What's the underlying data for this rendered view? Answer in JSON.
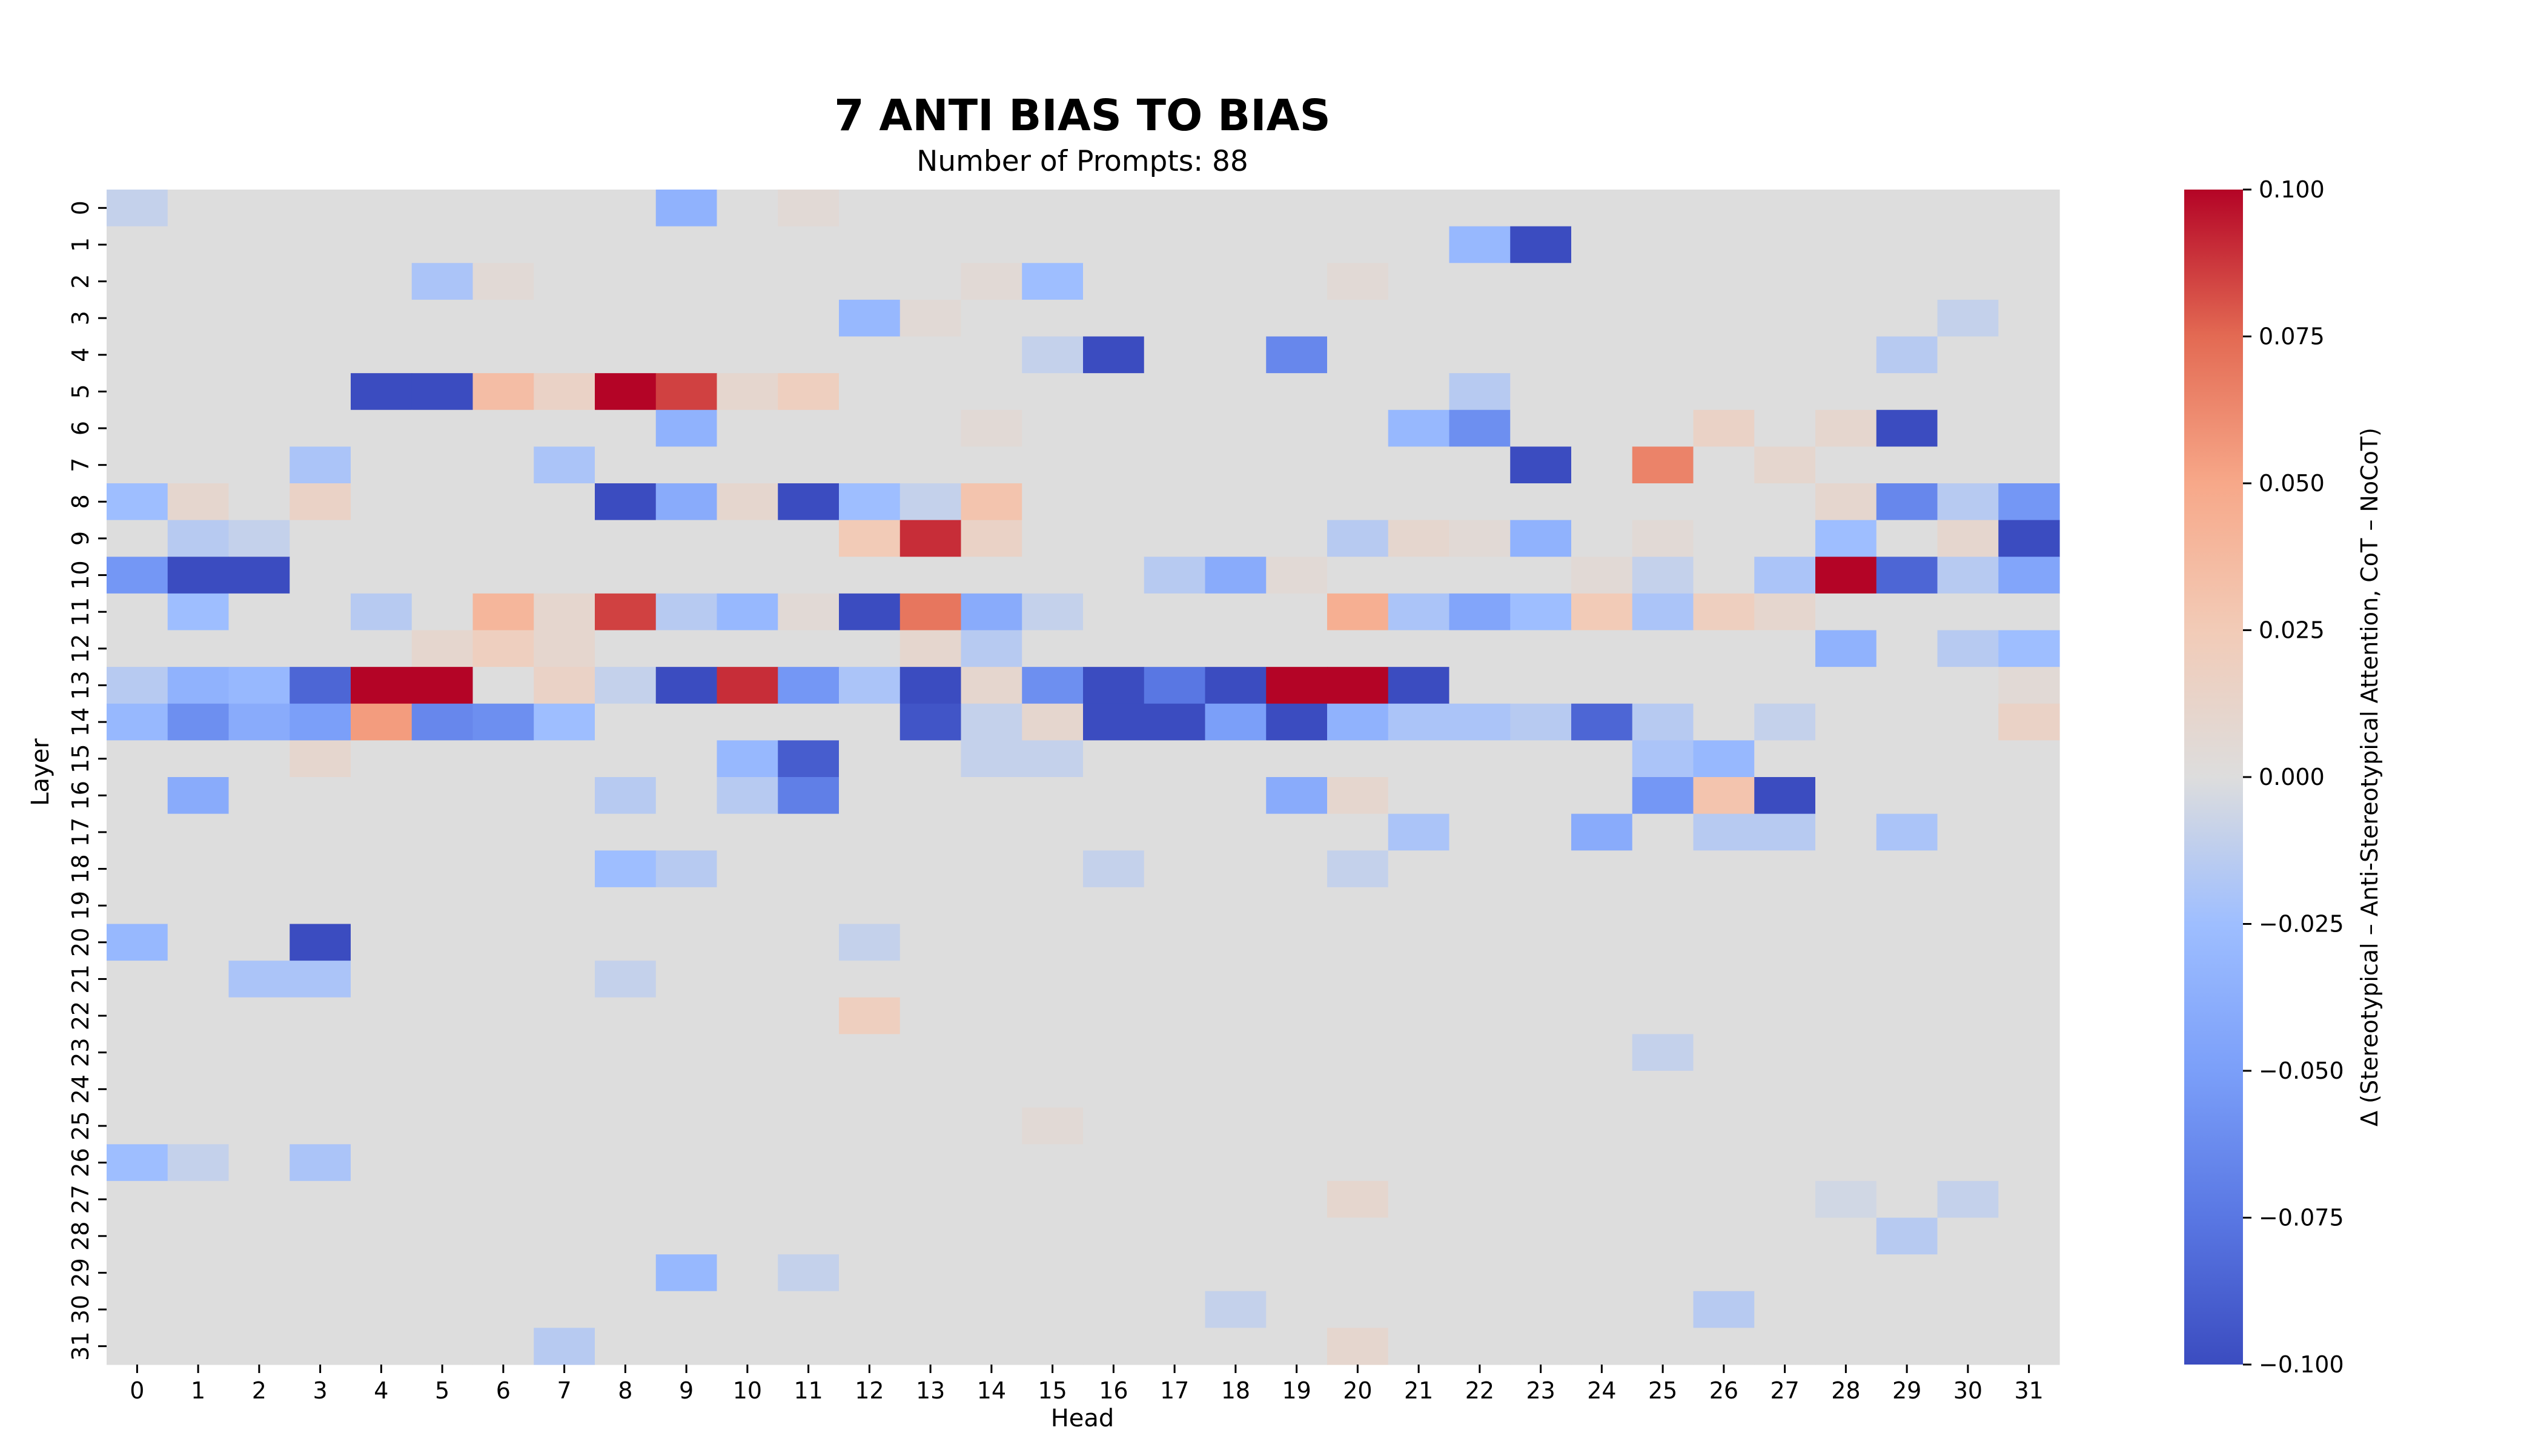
{
  "chart_data": {
    "type": "heatmap",
    "title": "7 ANTI BIAS TO BIAS",
    "subtitle": "Number of Prompts: 88",
    "xlabel": "Head",
    "ylabel": "Layer",
    "x_categories": [
      "0",
      "1",
      "2",
      "3",
      "4",
      "5",
      "6",
      "7",
      "8",
      "9",
      "10",
      "11",
      "12",
      "13",
      "14",
      "15",
      "16",
      "17",
      "18",
      "19",
      "20",
      "21",
      "22",
      "23",
      "24",
      "25",
      "26",
      "27",
      "28",
      "29",
      "30",
      "31"
    ],
    "y_categories": [
      "0",
      "1",
      "2",
      "3",
      "4",
      "5",
      "6",
      "7",
      "8",
      "9",
      "10",
      "11",
      "12",
      "13",
      "14",
      "15",
      "16",
      "17",
      "18",
      "19",
      "20",
      "21",
      "22",
      "23",
      "24",
      "25",
      "26",
      "27",
      "28",
      "29",
      "30",
      "31"
    ],
    "colorbar": {
      "label": "Δ (Stereotypical – Anti-Stereotypical Attention, CoT – NoCoT)",
      "colormap": "coolwarm",
      "vmin": -0.1,
      "vmax": 0.1,
      "ticks": [
        "0.100",
        "0.075",
        "0.050",
        "0.025",
        "0.000",
        "−0.025",
        "−0.050",
        "−0.075",
        "−0.100"
      ]
    },
    "nonzero_cells": [
      {
        "layer": 0,
        "head": 0,
        "value": -0.01
      },
      {
        "layer": 0,
        "head": 9,
        "value": -0.035
      },
      {
        "layer": 0,
        "head": 11,
        "value": 0.005
      },
      {
        "layer": 1,
        "head": 22,
        "value": -0.03
      },
      {
        "layer": 1,
        "head": 23,
        "value": -0.1
      },
      {
        "layer": 2,
        "head": 5,
        "value": -0.02
      },
      {
        "layer": 2,
        "head": 6,
        "value": 0.005
      },
      {
        "layer": 2,
        "head": 14,
        "value": 0.005
      },
      {
        "layer": 2,
        "head": 15,
        "value": -0.025
      },
      {
        "layer": 2,
        "head": 20,
        "value": 0.005
      },
      {
        "layer": 3,
        "head": 12,
        "value": -0.03
      },
      {
        "layer": 3,
        "head": 13,
        "value": 0.005
      },
      {
        "layer": 3,
        "head": 30,
        "value": -0.01
      },
      {
        "layer": 4,
        "head": 15,
        "value": -0.01
      },
      {
        "layer": 4,
        "head": 16,
        "value": -0.1
      },
      {
        "layer": 4,
        "head": 19,
        "value": -0.065
      },
      {
        "layer": 4,
        "head": 29,
        "value": -0.015
      },
      {
        "layer": 5,
        "head": 4,
        "value": -0.1
      },
      {
        "layer": 5,
        "head": 5,
        "value": -0.1
      },
      {
        "layer": 5,
        "head": 6,
        "value": 0.035
      },
      {
        "layer": 5,
        "head": 7,
        "value": 0.015
      },
      {
        "layer": 5,
        "head": 8,
        "value": 0.1
      },
      {
        "layer": 5,
        "head": 9,
        "value": 0.085
      },
      {
        "layer": 5,
        "head": 10,
        "value": 0.01
      },
      {
        "layer": 5,
        "head": 11,
        "value": 0.02
      },
      {
        "layer": 5,
        "head": 22,
        "value": -0.015
      },
      {
        "layer": 6,
        "head": 9,
        "value": -0.035
      },
      {
        "layer": 6,
        "head": 14,
        "value": 0.005
      },
      {
        "layer": 6,
        "head": 21,
        "value": -0.03
      },
      {
        "layer": 6,
        "head": 22,
        "value": -0.06
      },
      {
        "layer": 6,
        "head": 26,
        "value": 0.015
      },
      {
        "layer": 6,
        "head": 28,
        "value": 0.01
      },
      {
        "layer": 6,
        "head": 29,
        "value": -0.1
      },
      {
        "layer": 7,
        "head": 3,
        "value": -0.02
      },
      {
        "layer": 7,
        "head": 7,
        "value": -0.02
      },
      {
        "layer": 7,
        "head": 23,
        "value": -0.1
      },
      {
        "layer": 7,
        "head": 25,
        "value": 0.065
      },
      {
        "layer": 7,
        "head": 27,
        "value": 0.01
      },
      {
        "layer": 8,
        "head": 0,
        "value": -0.025
      },
      {
        "layer": 8,
        "head": 1,
        "value": 0.01
      },
      {
        "layer": 8,
        "head": 3,
        "value": 0.015
      },
      {
        "layer": 8,
        "head": 8,
        "value": -0.1
      },
      {
        "layer": 8,
        "head": 9,
        "value": -0.04
      },
      {
        "layer": 8,
        "head": 10,
        "value": 0.01
      },
      {
        "layer": 8,
        "head": 11,
        "value": -0.1
      },
      {
        "layer": 8,
        "head": 12,
        "value": -0.025
      },
      {
        "layer": 8,
        "head": 13,
        "value": -0.01
      },
      {
        "layer": 8,
        "head": 14,
        "value": 0.03
      },
      {
        "layer": 8,
        "head": 28,
        "value": 0.01
      },
      {
        "layer": 8,
        "head": 29,
        "value": -0.065
      },
      {
        "layer": 8,
        "head": 30,
        "value": -0.015
      },
      {
        "layer": 8,
        "head": 31,
        "value": -0.055
      },
      {
        "layer": 9,
        "head": 1,
        "value": -0.015
      },
      {
        "layer": 9,
        "head": 2,
        "value": -0.01
      },
      {
        "layer": 9,
        "head": 12,
        "value": 0.025
      },
      {
        "layer": 9,
        "head": 13,
        "value": 0.09
      },
      {
        "layer": 9,
        "head": 14,
        "value": 0.015
      },
      {
        "layer": 9,
        "head": 20,
        "value": -0.015
      },
      {
        "layer": 9,
        "head": 21,
        "value": 0.01
      },
      {
        "layer": 9,
        "head": 22,
        "value": 0.005
      },
      {
        "layer": 9,
        "head": 23,
        "value": -0.035
      },
      {
        "layer": 9,
        "head": 25,
        "value": 0.005
      },
      {
        "layer": 9,
        "head": 28,
        "value": -0.025
      },
      {
        "layer": 9,
        "head": 30,
        "value": 0.01
      },
      {
        "layer": 9,
        "head": 31,
        "value": -0.1
      },
      {
        "layer": 10,
        "head": 0,
        "value": -0.055
      },
      {
        "layer": 10,
        "head": 1,
        "value": -0.1
      },
      {
        "layer": 10,
        "head": 2,
        "value": -0.1
      },
      {
        "layer": 10,
        "head": 17,
        "value": -0.015
      },
      {
        "layer": 10,
        "head": 18,
        "value": -0.04
      },
      {
        "layer": 10,
        "head": 19,
        "value": 0.005
      },
      {
        "layer": 10,
        "head": 24,
        "value": 0.005
      },
      {
        "layer": 10,
        "head": 25,
        "value": -0.01
      },
      {
        "layer": 10,
        "head": 27,
        "value": -0.02
      },
      {
        "layer": 10,
        "head": 28,
        "value": 0.1
      },
      {
        "layer": 10,
        "head": 29,
        "value": -0.085
      },
      {
        "layer": 10,
        "head": 30,
        "value": -0.015
      },
      {
        "layer": 10,
        "head": 31,
        "value": -0.045
      },
      {
        "layer": 11,
        "head": 1,
        "value": -0.025
      },
      {
        "layer": 11,
        "head": 4,
        "value": -0.015
      },
      {
        "layer": 11,
        "head": 6,
        "value": 0.04
      },
      {
        "layer": 11,
        "head": 7,
        "value": 0.01
      },
      {
        "layer": 11,
        "head": 8,
        "value": 0.085
      },
      {
        "layer": 11,
        "head": 9,
        "value": -0.015
      },
      {
        "layer": 11,
        "head": 10,
        "value": -0.03
      },
      {
        "layer": 11,
        "head": 11,
        "value": 0.005
      },
      {
        "layer": 11,
        "head": 12,
        "value": -0.1
      },
      {
        "layer": 11,
        "head": 13,
        "value": 0.07
      },
      {
        "layer": 11,
        "head": 14,
        "value": -0.04
      },
      {
        "layer": 11,
        "head": 15,
        "value": -0.01
      },
      {
        "layer": 11,
        "head": 20,
        "value": 0.045
      },
      {
        "layer": 11,
        "head": 21,
        "value": -0.02
      },
      {
        "layer": 11,
        "head": 22,
        "value": -0.045
      },
      {
        "layer": 11,
        "head": 23,
        "value": -0.025
      },
      {
        "layer": 11,
        "head": 24,
        "value": 0.025
      },
      {
        "layer": 11,
        "head": 25,
        "value": -0.02
      },
      {
        "layer": 11,
        "head": 26,
        "value": 0.02
      },
      {
        "layer": 11,
        "head": 27,
        "value": 0.01
      },
      {
        "layer": 12,
        "head": 5,
        "value": 0.01
      },
      {
        "layer": 12,
        "head": 6,
        "value": 0.02
      },
      {
        "layer": 12,
        "head": 7,
        "value": 0.01
      },
      {
        "layer": 12,
        "head": 13,
        "value": 0.01
      },
      {
        "layer": 12,
        "head": 14,
        "value": -0.015
      },
      {
        "layer": 12,
        "head": 28,
        "value": -0.035
      },
      {
        "layer": 12,
        "head": 30,
        "value": -0.015
      },
      {
        "layer": 12,
        "head": 31,
        "value": -0.025
      },
      {
        "layer": 13,
        "head": 0,
        "value": -0.015
      },
      {
        "layer": 13,
        "head": 1,
        "value": -0.035
      },
      {
        "layer": 13,
        "head": 2,
        "value": -0.03
      },
      {
        "layer": 13,
        "head": 3,
        "value": -0.085
      },
      {
        "layer": 13,
        "head": 4,
        "value": 0.1
      },
      {
        "layer": 13,
        "head": 5,
        "value": 0.1
      },
      {
        "layer": 13,
        "head": 7,
        "value": 0.015
      },
      {
        "layer": 13,
        "head": 8,
        "value": -0.01
      },
      {
        "layer": 13,
        "head": 9,
        "value": -0.1
      },
      {
        "layer": 13,
        "head": 10,
        "value": 0.09
      },
      {
        "layer": 13,
        "head": 11,
        "value": -0.055
      },
      {
        "layer": 13,
        "head": 12,
        "value": -0.02
      },
      {
        "layer": 13,
        "head": 13,
        "value": -0.1
      },
      {
        "layer": 13,
        "head": 14,
        "value": 0.01
      },
      {
        "layer": 13,
        "head": 15,
        "value": -0.06
      },
      {
        "layer": 13,
        "head": 16,
        "value": -0.1
      },
      {
        "layer": 13,
        "head": 17,
        "value": -0.075
      },
      {
        "layer": 13,
        "head": 18,
        "value": -0.1
      },
      {
        "layer": 13,
        "head": 19,
        "value": 0.1
      },
      {
        "layer": 13,
        "head": 20,
        "value": 0.1
      },
      {
        "layer": 13,
        "head": 21,
        "value": -0.1
      },
      {
        "layer": 13,
        "head": 31,
        "value": 0.005
      },
      {
        "layer": 14,
        "head": 0,
        "value": -0.03
      },
      {
        "layer": 14,
        "head": 1,
        "value": -0.06
      },
      {
        "layer": 14,
        "head": 2,
        "value": -0.04
      },
      {
        "layer": 14,
        "head": 3,
        "value": -0.05
      },
      {
        "layer": 14,
        "head": 4,
        "value": 0.055
      },
      {
        "layer": 14,
        "head": 5,
        "value": -0.065
      },
      {
        "layer": 14,
        "head": 6,
        "value": -0.06
      },
      {
        "layer": 14,
        "head": 7,
        "value": -0.025
      },
      {
        "layer": 14,
        "head": 13,
        "value": -0.095
      },
      {
        "layer": 14,
        "head": 14,
        "value": -0.01
      },
      {
        "layer": 14,
        "head": 15,
        "value": 0.01
      },
      {
        "layer": 14,
        "head": 16,
        "value": -0.1
      },
      {
        "layer": 14,
        "head": 17,
        "value": -0.1
      },
      {
        "layer": 14,
        "head": 18,
        "value": -0.05
      },
      {
        "layer": 14,
        "head": 19,
        "value": -0.1
      },
      {
        "layer": 14,
        "head": 20,
        "value": -0.035
      },
      {
        "layer": 14,
        "head": 21,
        "value": -0.02
      },
      {
        "layer": 14,
        "head": 22,
        "value": -0.02
      },
      {
        "layer": 14,
        "head": 23,
        "value": -0.015
      },
      {
        "layer": 14,
        "head": 24,
        "value": -0.085
      },
      {
        "layer": 14,
        "head": 25,
        "value": -0.015
      },
      {
        "layer": 14,
        "head": 27,
        "value": -0.01
      },
      {
        "layer": 14,
        "head": 31,
        "value": 0.015
      },
      {
        "layer": 15,
        "head": 3,
        "value": 0.01
      },
      {
        "layer": 15,
        "head": 10,
        "value": -0.03
      },
      {
        "layer": 15,
        "head": 11,
        "value": -0.09
      },
      {
        "layer": 15,
        "head": 14,
        "value": -0.01
      },
      {
        "layer": 15,
        "head": 15,
        "value": -0.01
      },
      {
        "layer": 15,
        "head": 25,
        "value": -0.02
      },
      {
        "layer": 15,
        "head": 26,
        "value": -0.03
      },
      {
        "layer": 16,
        "head": 1,
        "value": -0.04
      },
      {
        "layer": 16,
        "head": 8,
        "value": -0.015
      },
      {
        "layer": 16,
        "head": 10,
        "value": -0.015
      },
      {
        "layer": 16,
        "head": 11,
        "value": -0.07
      },
      {
        "layer": 16,
        "head": 19,
        "value": -0.04
      },
      {
        "layer": 16,
        "head": 20,
        "value": 0.01
      },
      {
        "layer": 16,
        "head": 25,
        "value": -0.055
      },
      {
        "layer": 16,
        "head": 26,
        "value": 0.03
      },
      {
        "layer": 16,
        "head": 27,
        "value": -0.1
      },
      {
        "layer": 17,
        "head": 21,
        "value": -0.02
      },
      {
        "layer": 17,
        "head": 24,
        "value": -0.04
      },
      {
        "layer": 17,
        "head": 26,
        "value": -0.015
      },
      {
        "layer": 17,
        "head": 27,
        "value": -0.015
      },
      {
        "layer": 17,
        "head": 29,
        "value": -0.02
      },
      {
        "layer": 18,
        "head": 8,
        "value": -0.025
      },
      {
        "layer": 18,
        "head": 9,
        "value": -0.015
      },
      {
        "layer": 18,
        "head": 16,
        "value": -0.01
      },
      {
        "layer": 18,
        "head": 20,
        "value": -0.01
      },
      {
        "layer": 20,
        "head": 0,
        "value": -0.03
      },
      {
        "layer": 20,
        "head": 3,
        "value": -0.1
      },
      {
        "layer": 20,
        "head": 12,
        "value": -0.01
      },
      {
        "layer": 21,
        "head": 2,
        "value": -0.02
      },
      {
        "layer": 21,
        "head": 3,
        "value": -0.02
      },
      {
        "layer": 21,
        "head": 8,
        "value": -0.01
      },
      {
        "layer": 22,
        "head": 12,
        "value": 0.02
      },
      {
        "layer": 23,
        "head": 25,
        "value": -0.01
      },
      {
        "layer": 25,
        "head": 15,
        "value": 0.005
      },
      {
        "layer": 26,
        "head": 0,
        "value": -0.025
      },
      {
        "layer": 26,
        "head": 1,
        "value": -0.01
      },
      {
        "layer": 26,
        "head": 3,
        "value": -0.02
      },
      {
        "layer": 27,
        "head": 20,
        "value": 0.01
      },
      {
        "layer": 27,
        "head": 28,
        "value": -0.005
      },
      {
        "layer": 27,
        "head": 30,
        "value": -0.01
      },
      {
        "layer": 28,
        "head": 29,
        "value": -0.015
      },
      {
        "layer": 29,
        "head": 9,
        "value": -0.03
      },
      {
        "layer": 29,
        "head": 11,
        "value": -0.01
      },
      {
        "layer": 30,
        "head": 18,
        "value": -0.01
      },
      {
        "layer": 30,
        "head": 26,
        "value": -0.015
      },
      {
        "layer": 31,
        "head": 7,
        "value": -0.015
      },
      {
        "layer": 31,
        "head": 20,
        "value": 0.01
      }
    ]
  }
}
